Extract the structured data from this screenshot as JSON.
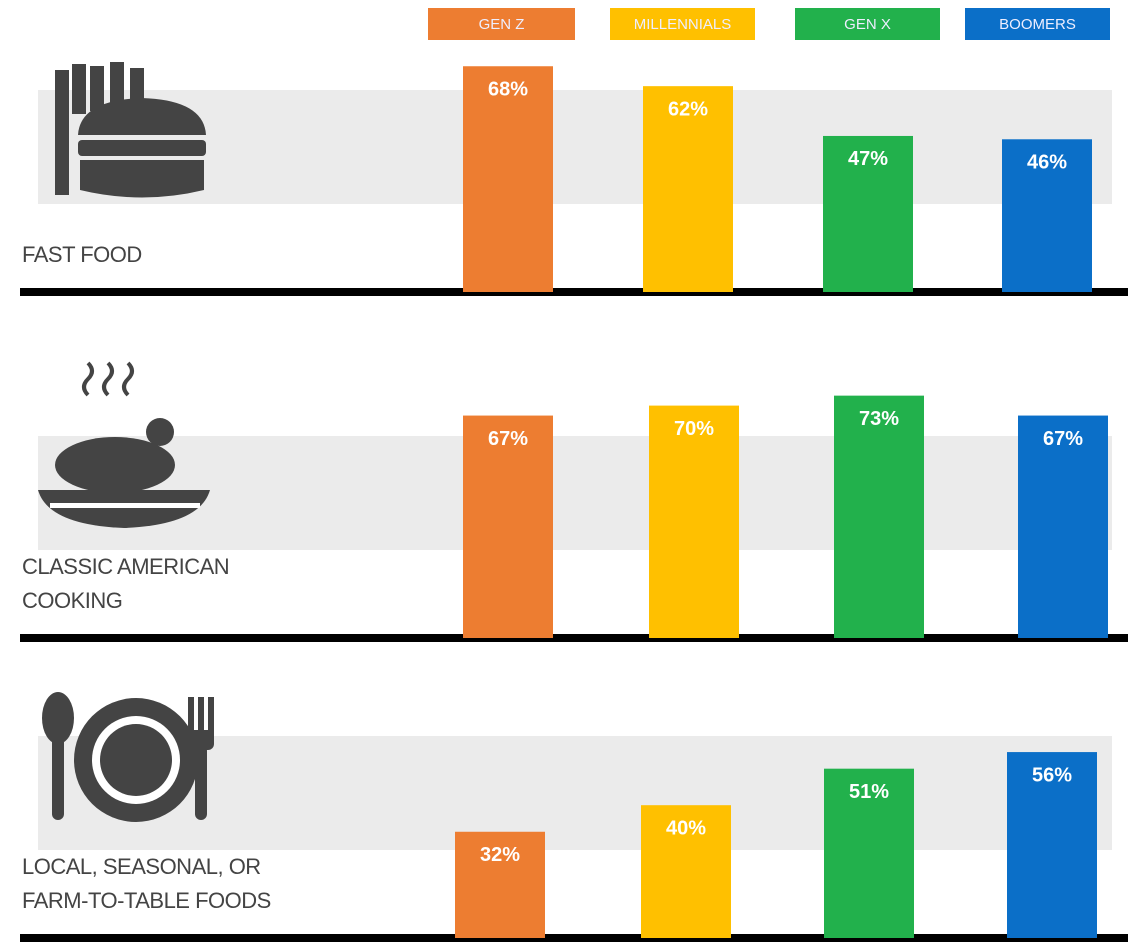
{
  "chart_data": {
    "type": "bar",
    "categories": [
      "FAST FOOD",
      "CLASSIC AMERICAN COOKING",
      "LOCAL, SEASONAL, OR FARM-TO-TABLE FOODS"
    ],
    "series": [
      {
        "name": "GEN Z",
        "color": "#ed7d31",
        "values": [
          68,
          67,
          32
        ],
        "value_labels": [
          "68%",
          "67%",
          "32%"
        ]
      },
      {
        "name": "MILLENNIALS",
        "color": "#ffc000",
        "values": [
          62,
          70,
          40
        ],
        "value_labels": [
          "62%",
          "70%",
          "40%"
        ]
      },
      {
        "name": "GEN X",
        "color": "#22b14c",
        "values": [
          47,
          73,
          51
        ],
        "value_labels": [
          "47%",
          "73%",
          "51%"
        ]
      },
      {
        "name": "BOOMERS",
        "color": "#0b6fc8",
        "values": [
          46,
          67,
          56
        ],
        "value_labels": [
          "46%",
          "67%",
          "56%"
        ]
      }
    ]
  }
}
